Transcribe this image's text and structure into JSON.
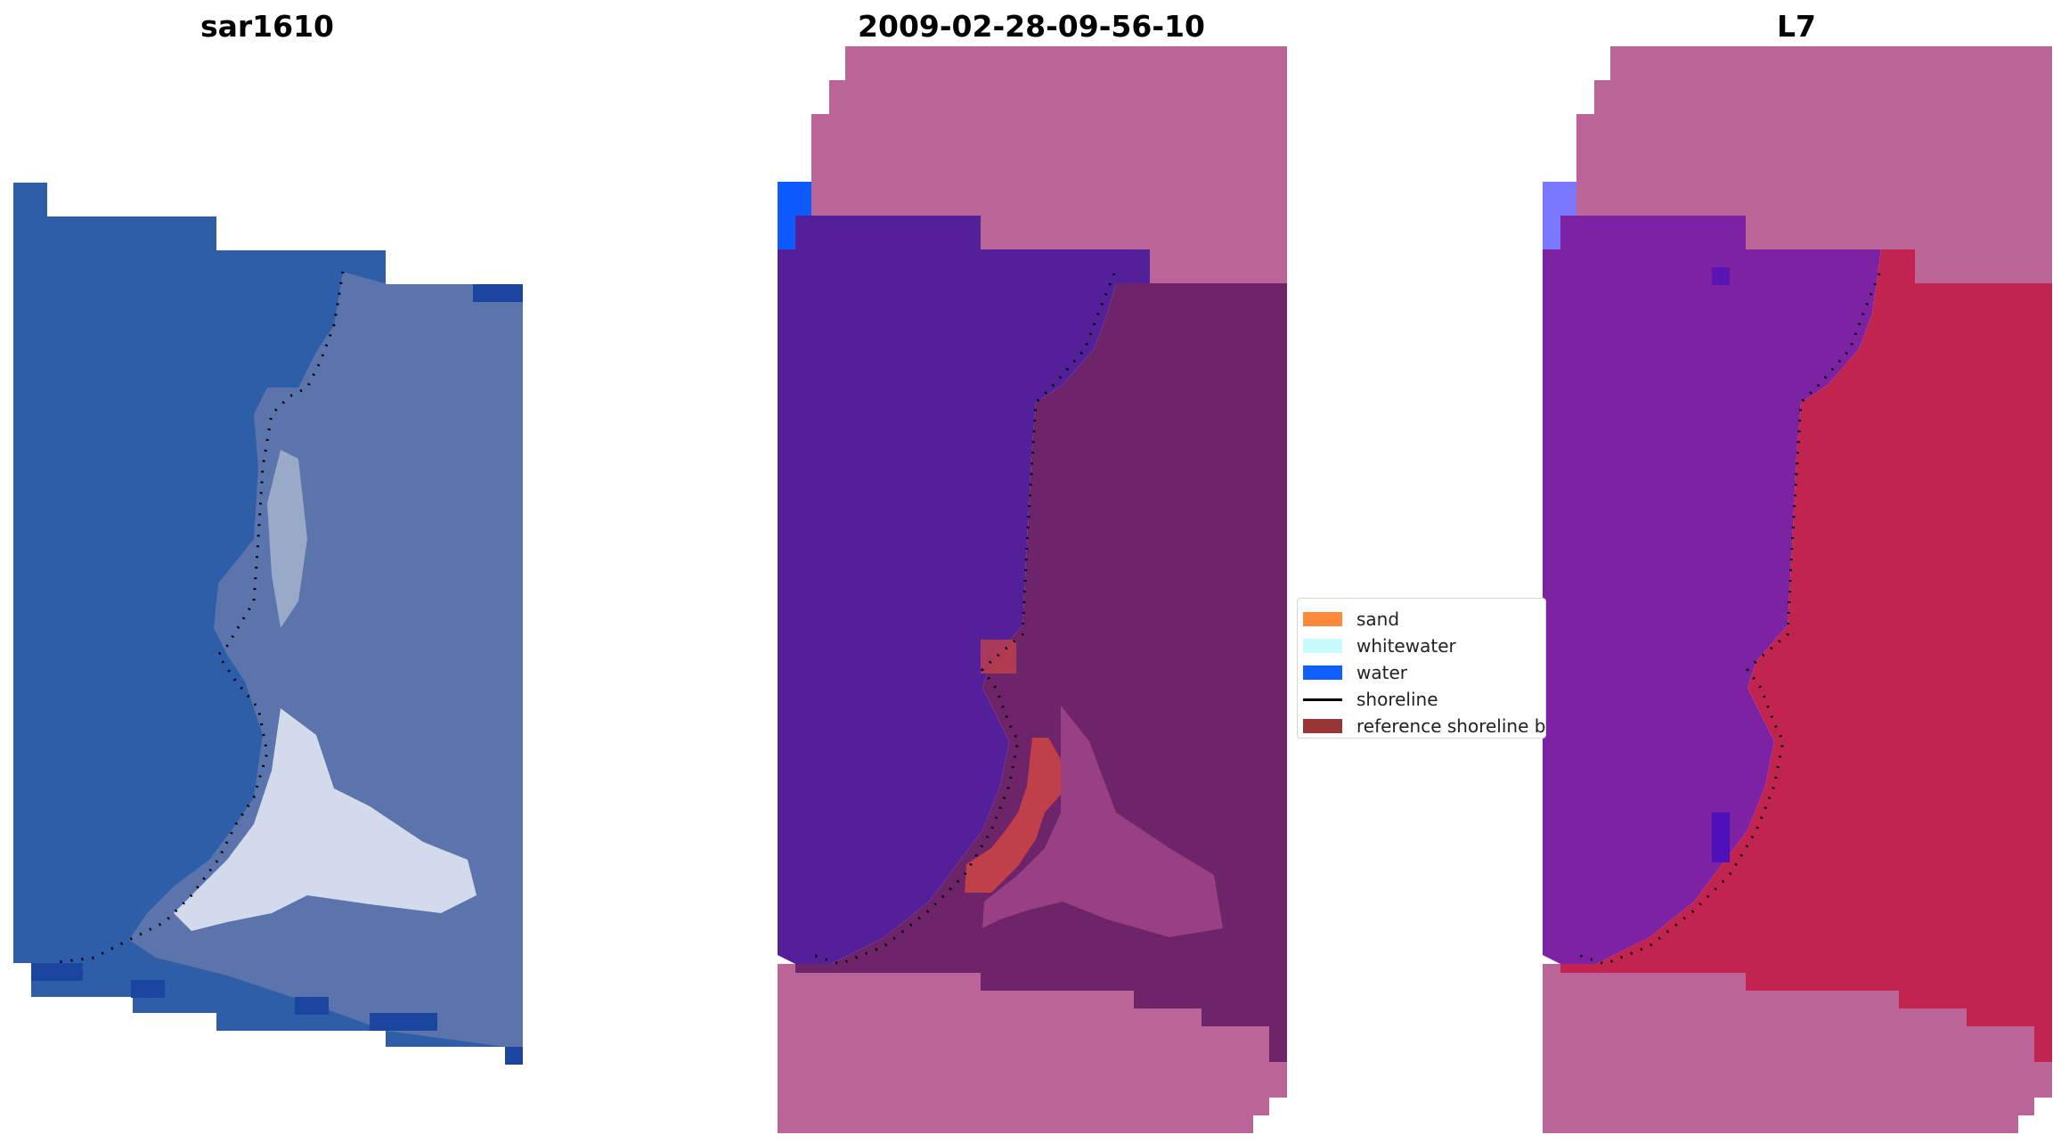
{
  "panels": {
    "left": {
      "title": "sar1610"
    },
    "middle": {
      "title": "2009-02-28-09-56-10"
    },
    "right": {
      "title": "L7"
    }
  },
  "legend": {
    "items": [
      {
        "label": "sand",
        "kind": "patch",
        "color": "#ff8a3d"
      },
      {
        "label": "whitewater",
        "kind": "patch",
        "color": "#c8fbfb"
      },
      {
        "label": "water",
        "kind": "patch",
        "color": "#1060ff"
      },
      {
        "label": "shoreline",
        "kind": "line",
        "color": "#000000"
      },
      {
        "label": "reference shoreline buffer",
        "kind": "patch",
        "color": "#9a3535"
      }
    ]
  },
  "colors": {
    "rgb_sea": "#2f5ea8",
    "rgb_sea_dark": "#234f9c",
    "rgb_land": "#5b74ab",
    "rgb_bright": "#dfe6f2",
    "class_water": "#53209a",
    "class_land": "#6e2468",
    "mask": "#bb6497",
    "mask_water_corner": "#0d5bff",
    "buffer": "#c0404a",
    "mndwi_water": "#7d22a3",
    "mndwi_land": "#c0244f",
    "mndwi_corner": "#7a78ff",
    "shoreline": "#000000"
  }
}
